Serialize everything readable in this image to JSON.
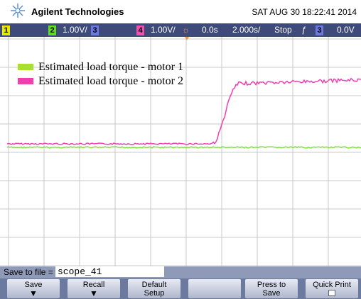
{
  "header": {
    "brand": "Agilent Technologies",
    "datetime": "SAT AUG 30 18:22:41 2014"
  },
  "status_bar": {
    "ch1": "1",
    "ch2": "2",
    "ch2_scale": "1.00V/",
    "ch3": "3",
    "ch4": "4",
    "ch4_scale": "1.00V/",
    "delay": "0.0s",
    "timebase": "2.000s/",
    "run_state": "Stop",
    "trigger_source": "3",
    "trigger_level": "0.0V"
  },
  "legend": [
    "Estimated load torque - motor 1",
    "Estimated load torque - motor 2"
  ],
  "save_bar": {
    "label": "Save to file =",
    "filename": "scope_41"
  },
  "softkeys": [
    "Save",
    "Recall",
    "Default Setup",
    "Press to Save",
    "Quick Print"
  ]
}
